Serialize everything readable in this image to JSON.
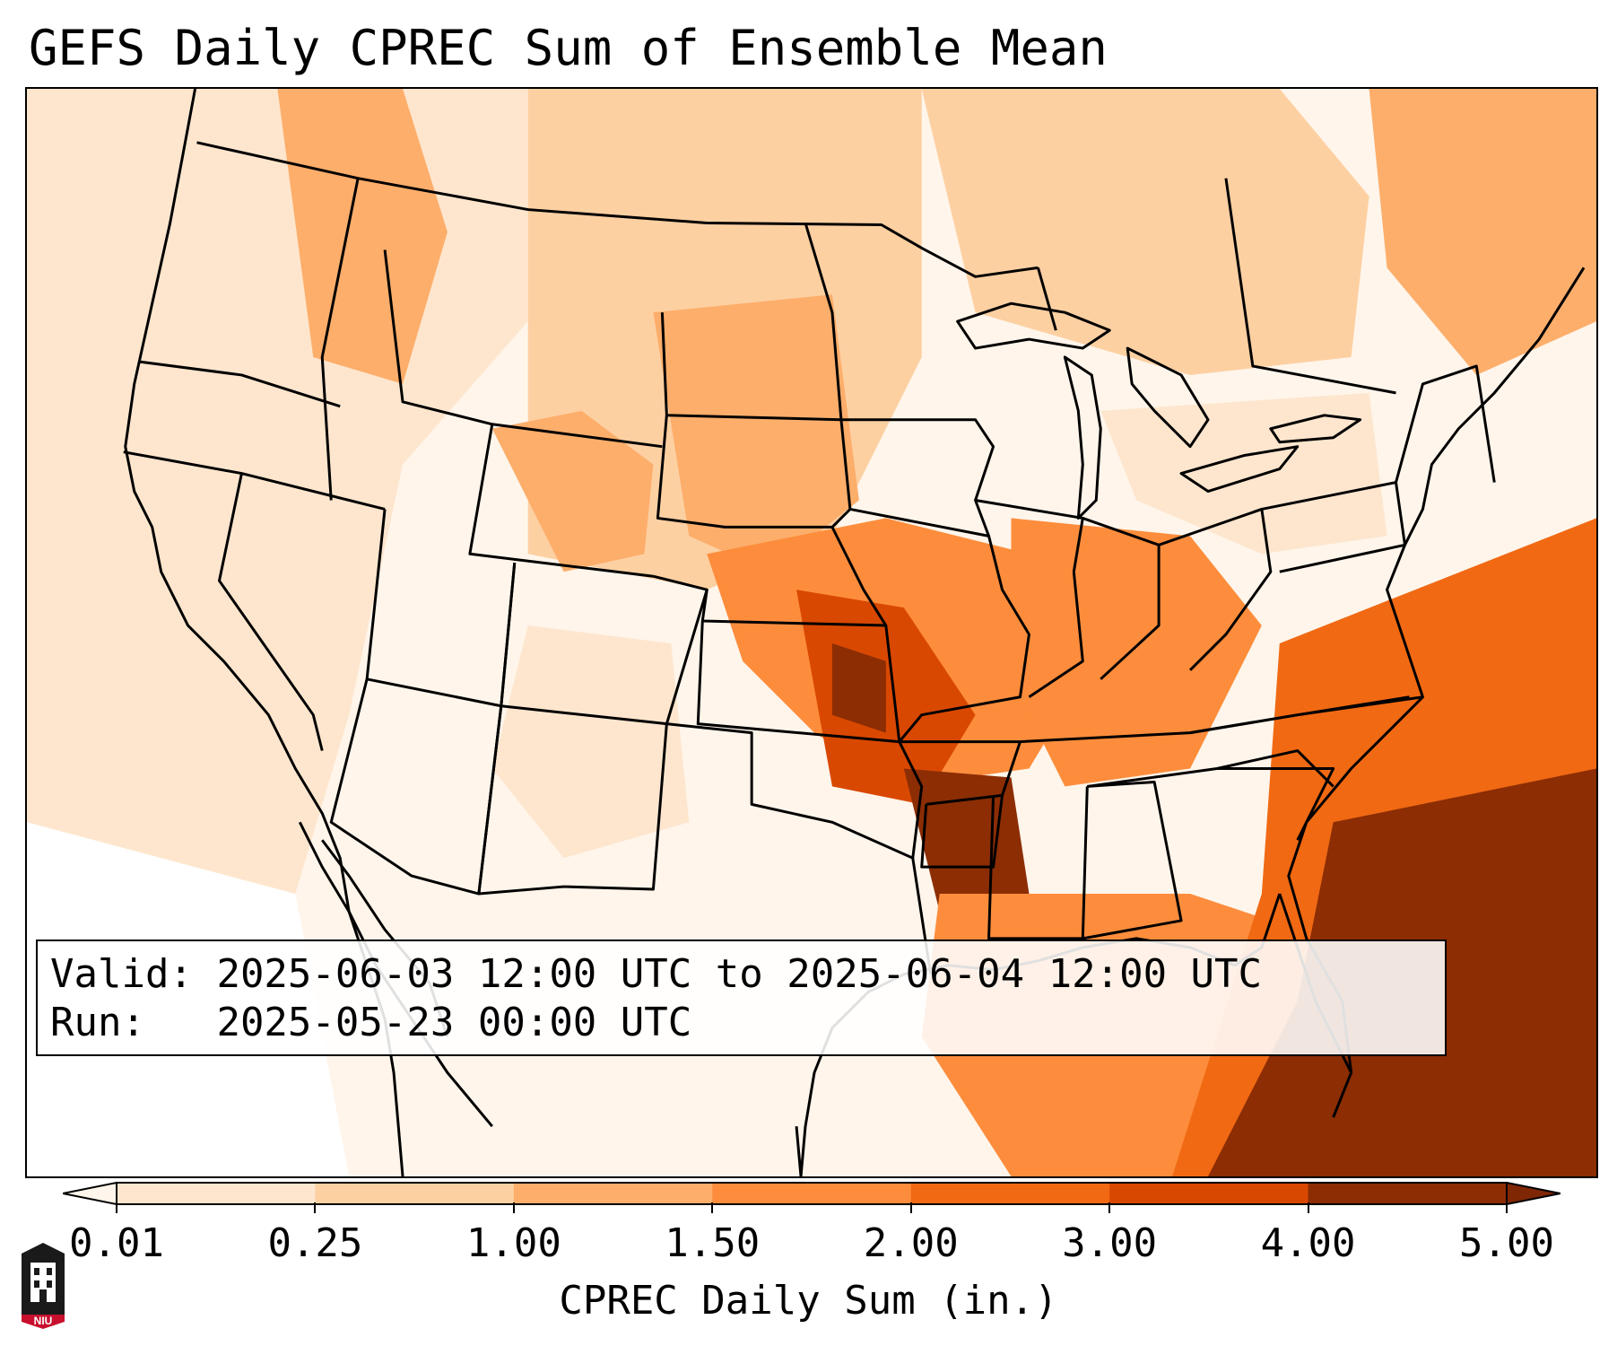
{
  "title": "GEFS Daily CPREC Sum of Ensemble Mean",
  "info": {
    "valid_label": "Valid:",
    "valid_value": "2025-06-03 12:00 UTC to 2025-06-04 12:00 UTC",
    "run_label": "Run:",
    "run_value": "2025-05-23 00:00 UTC"
  },
  "colorbar": {
    "label": "CPREC Daily Sum (in.)",
    "ticks": [
      "0.01",
      "0.25",
      "1.00",
      "1.50",
      "2.00",
      "3.00",
      "4.00",
      "5.00"
    ],
    "colors": [
      "#fff5eb",
      "#fee6ce",
      "#fdd0a2",
      "#fdae6b",
      "#fd8d3c",
      "#f16913",
      "#d94801",
      "#8c2d04"
    ],
    "under_color": "#fff5eb",
    "over_color": "#7f2704"
  },
  "logo": {
    "text": "NIU",
    "color": "#c8102e"
  }
}
